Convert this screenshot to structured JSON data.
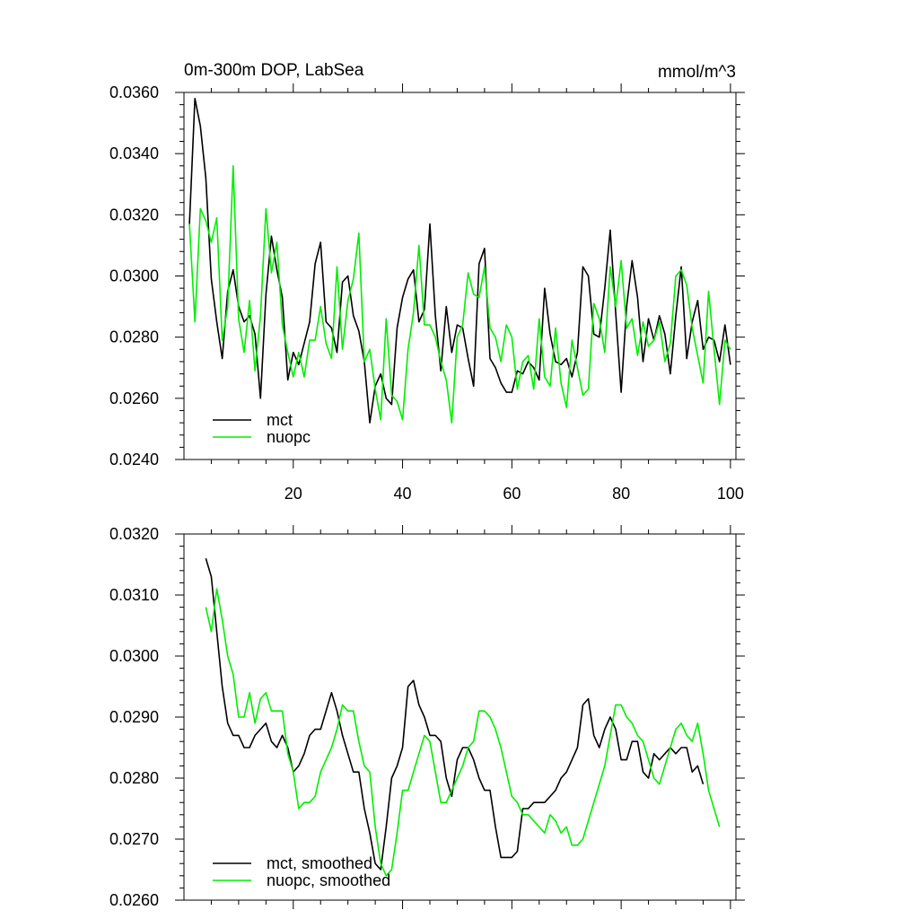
{
  "chart_data": [
    {
      "type": "line",
      "title_left": "0m-300m DOP, LabSea",
      "title_right": "mmol/m^3",
      "xlim": [
        0,
        101
      ],
      "ylim": [
        0.024,
        0.036
      ],
      "xticks": [
        20,
        40,
        60,
        80,
        100
      ],
      "xtick_labels": [
        "20",
        "40",
        "60",
        "80",
        "100"
      ],
      "yticks": [
        0.024,
        0.026,
        0.028,
        0.03,
        0.032,
        0.034,
        0.036
      ],
      "ytick_labels": [
        "0.0240",
        "0.0260",
        "0.0280",
        "0.0300",
        "0.0320",
        "0.0340",
        "0.0360"
      ],
      "legend": "bottom-left",
      "x_start": 1,
      "series": [
        {
          "name": "mct",
          "color": "#000000",
          "values": [
            0.0317,
            0.0358,
            0.0349,
            0.0332,
            0.0299,
            0.0285,
            0.0273,
            0.0295,
            0.0302,
            0.029,
            0.0285,
            0.0287,
            0.0281,
            0.026,
            0.0294,
            0.0313,
            0.0302,
            0.0293,
            0.0266,
            0.0275,
            0.0271,
            0.0278,
            0.0285,
            0.0304,
            0.0311,
            0.0285,
            0.0283,
            0.0275,
            0.0298,
            0.03,
            0.0287,
            0.0282,
            0.0272,
            0.0252,
            0.0264,
            0.0268,
            0.026,
            0.0258,
            0.0283,
            0.0293,
            0.0299,
            0.0302,
            0.0285,
            0.0289,
            0.0317,
            0.0287,
            0.0269,
            0.029,
            0.0275,
            0.0284,
            0.0283,
            0.0273,
            0.0264,
            0.0304,
            0.0309,
            0.0273,
            0.027,
            0.0265,
            0.0262,
            0.0262,
            0.0269,
            0.0268,
            0.0272,
            0.027,
            0.0266,
            0.0296,
            0.0281,
            0.0272,
            0.0271,
            0.0273,
            0.0267,
            0.0275,
            0.0303,
            0.03,
            0.0281,
            0.028,
            0.0296,
            0.0315,
            0.0288,
            0.0262,
            0.029,
            0.0305,
            0.0293,
            0.0272,
            0.0286,
            0.0279,
            0.0287,
            0.0281,
            0.0268,
            0.0287,
            0.0303,
            0.0273,
            0.0285,
            0.0292,
            0.0276,
            0.028,
            0.0279,
            0.0272,
            0.0284,
            0.0271
          ]
        },
        {
          "name": "nuopc",
          "color": "#00ee00",
          "values": [
            0.0317,
            0.0285,
            0.0322,
            0.0318,
            0.0311,
            0.0319,
            0.0279,
            0.029,
            0.0336,
            0.0286,
            0.0275,
            0.0292,
            0.0269,
            0.0287,
            0.0322,
            0.0301,
            0.0311,
            0.0284,
            0.0275,
            0.0267,
            0.0275,
            0.0267,
            0.0279,
            0.0279,
            0.029,
            0.0278,
            0.0273,
            0.0303,
            0.0276,
            0.0292,
            0.0299,
            0.0314,
            0.0272,
            0.0276,
            0.0263,
            0.0253,
            0.0286,
            0.0261,
            0.0259,
            0.0253,
            0.0276,
            0.0288,
            0.031,
            0.0284,
            0.0284,
            0.028,
            0.0272,
            0.0266,
            0.0252,
            0.028,
            0.0284,
            0.0301,
            0.0294,
            0.0293,
            0.0303,
            0.0283,
            0.028,
            0.0272,
            0.0284,
            0.028,
            0.0263,
            0.0272,
            0.0274,
            0.0263,
            0.0286,
            0.0267,
            0.0264,
            0.0283,
            0.0265,
            0.0257,
            0.0279,
            0.027,
            0.0261,
            0.0263,
            0.0291,
            0.0286,
            0.0275,
            0.0303,
            0.029,
            0.0305,
            0.0283,
            0.0286,
            0.0274,
            0.0285,
            0.0277,
            0.0279,
            0.0285,
            0.0272,
            0.0278,
            0.03,
            0.0302,
            0.0297,
            0.0283,
            0.0274,
            0.0265,
            0.0295,
            0.0276,
            0.0258,
            0.0279,
            0.0276
          ]
        }
      ]
    },
    {
      "type": "line",
      "xlim": [
        0,
        101
      ],
      "ylim": [
        0.026,
        0.032
      ],
      "xticks": [
        20,
        40,
        60,
        80,
        100
      ],
      "yticks": [
        0.026,
        0.027,
        0.028,
        0.029,
        0.03,
        0.031,
        0.032
      ],
      "ytick_labels": [
        "0.0260",
        "0.0270",
        "0.0280",
        "0.0290",
        "0.0300",
        "0.0310",
        "0.0320"
      ],
      "legend": "bottom-left",
      "x_start": 4,
      "series": [
        {
          "name": "mct, smoothed",
          "color": "#000000",
          "values": [
            0.0316,
            0.0313,
            0.0304,
            0.0295,
            0.0289,
            0.0287,
            0.0287,
            0.0285,
            0.0285,
            0.0287,
            0.0288,
            0.0289,
            0.0286,
            0.0285,
            0.0287,
            0.0285,
            0.0281,
            0.0282,
            0.0284,
            0.0287,
            0.0288,
            0.0288,
            0.0291,
            0.0294,
            0.0291,
            0.0287,
            0.0284,
            0.0281,
            0.0281,
            0.0275,
            0.0271,
            0.0266,
            0.0265,
            0.0272,
            0.028,
            0.0282,
            0.0285,
            0.0295,
            0.0296,
            0.0292,
            0.029,
            0.0287,
            0.0287,
            0.0286,
            0.028,
            0.0277,
            0.0283,
            0.0285,
            0.0285,
            0.0283,
            0.028,
            0.0278,
            0.0278,
            0.0272,
            0.0267,
            0.0267,
            0.0267,
            0.0268,
            0.0275,
            0.0275,
            0.0276,
            0.0276,
            0.0276,
            0.0277,
            0.0278,
            0.028,
            0.0281,
            0.0283,
            0.0285,
            0.0292,
            0.0293,
            0.0287,
            0.0285,
            0.0288,
            0.029,
            0.0288,
            0.0283,
            0.0283,
            0.0286,
            0.0286,
            0.0281,
            0.028,
            0.0284,
            0.0283,
            0.0284,
            0.0285,
            0.0284,
            0.0285,
            0.0285,
            0.0281,
            0.0282,
            0.0279
          ]
        },
        {
          "name": "nuopc, smoothed",
          "color": "#00ee00",
          "values": [
            0.0308,
            0.0304,
            0.0311,
            0.0306,
            0.03,
            0.0297,
            0.029,
            0.029,
            0.0294,
            0.0289,
            0.0293,
            0.0294,
            0.0291,
            0.0291,
            0.0291,
            0.0284,
            0.0281,
            0.0275,
            0.0276,
            0.0276,
            0.0277,
            0.0281,
            0.0283,
            0.0285,
            0.0288,
            0.0292,
            0.0291,
            0.0291,
            0.0286,
            0.0282,
            0.0281,
            0.0272,
            0.0266,
            0.0264,
            0.0265,
            0.0271,
            0.0278,
            0.0278,
            0.0281,
            0.0284,
            0.0287,
            0.0286,
            0.0281,
            0.0276,
            0.0276,
            0.0278,
            0.028,
            0.0282,
            0.0285,
            0.0286,
            0.0291,
            0.0291,
            0.029,
            0.0288,
            0.0285,
            0.0281,
            0.0277,
            0.0276,
            0.0274,
            0.0274,
            0.0273,
            0.0272,
            0.0271,
            0.0274,
            0.0273,
            0.0271,
            0.0272,
            0.0269,
            0.0269,
            0.027,
            0.0273,
            0.0276,
            0.0279,
            0.0282,
            0.0287,
            0.0292,
            0.0292,
            0.029,
            0.0289,
            0.0287,
            0.0286,
            0.0283,
            0.028,
            0.0279,
            0.0282,
            0.0285,
            0.0288,
            0.0289,
            0.0287,
            0.0286,
            0.0289,
            0.0284,
            0.0278,
            0.0275,
            0.0272
          ]
        }
      ]
    }
  ]
}
